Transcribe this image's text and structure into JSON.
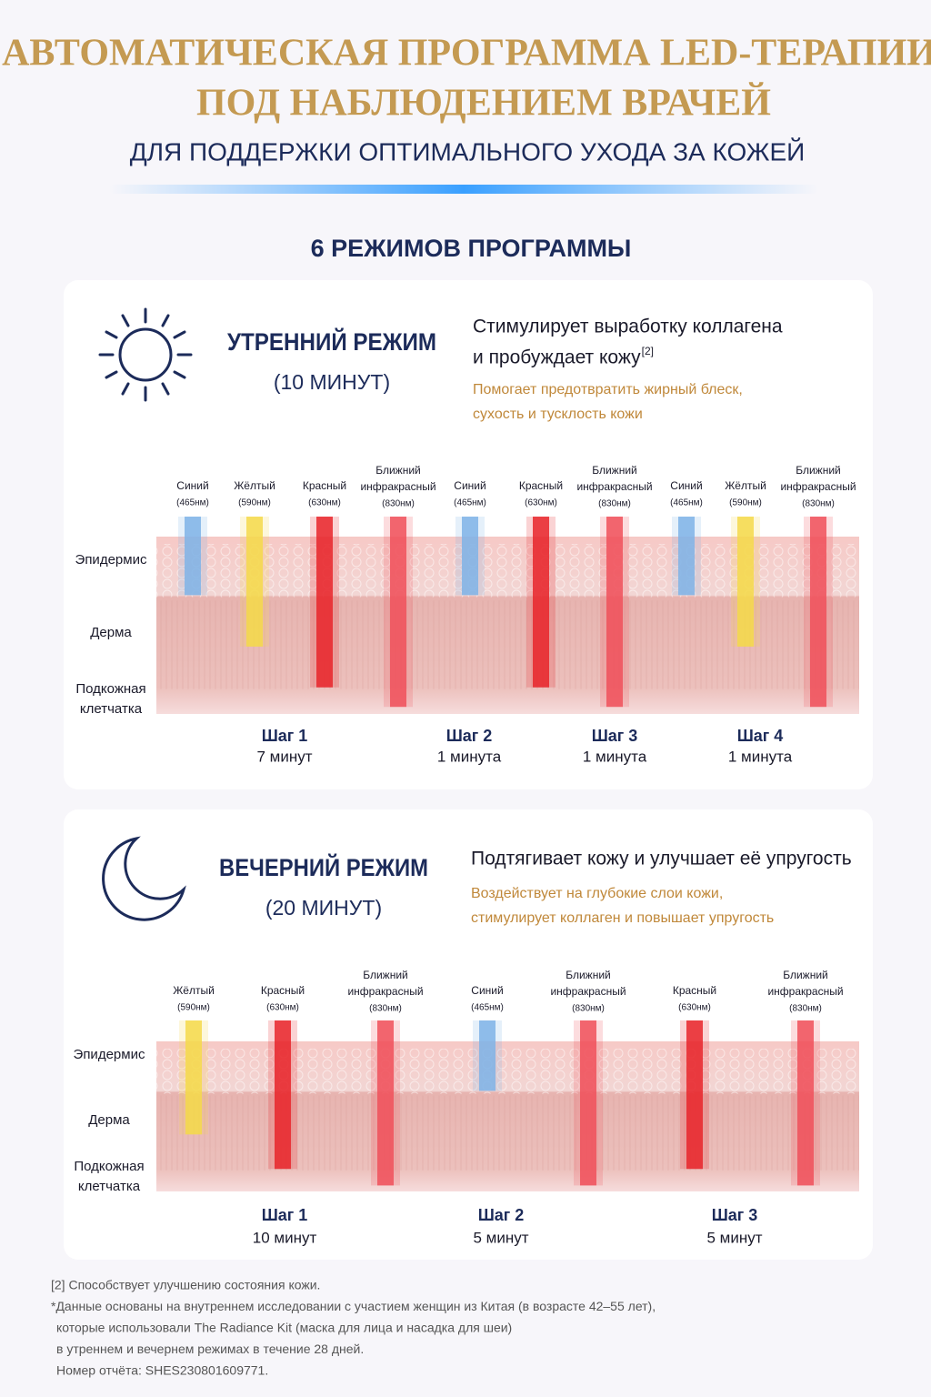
{
  "header": {
    "title_line1": "АВТОМАТИЧЕСКАЯ ПРОГРАММА LED-ТЕРАПИИ",
    "title_line2": "ПОД НАБЛЮДЕНИЕМ ВРАЧЕЙ",
    "subtitle": "ДЛЯ ПОДДЕРЖКИ ОПТИМАЛЬНОГО УХОДА ЗА КОЖЕЙ"
  },
  "section_title": "6 РЕЖИМОВ ПРОГРАММЫ",
  "modes": [
    {
      "name": "УТРЕННИЙ РЕЖИМ",
      "duration": "(10 МИНУТ)",
      "headline": [
        "Стимулирует выработку коллагена",
        "и пробуждает кожу"
      ],
      "headline_note": "[2]",
      "description": [
        "Помогает предотвратить жирный блеск,",
        "сухость и тусклость кожи"
      ],
      "layers": [
        [
          "Эпидермис"
        ],
        [
          "Дерма"
        ],
        [
          "Подкожная",
          "клетчатка"
        ]
      ],
      "lights": [
        {
          "name": [
            "Синий"
          ],
          "wavelength": "(465нм)",
          "color": "#7fb3e6"
        },
        {
          "name": [
            "Жёлтый"
          ],
          "wavelength": "(590нм)",
          "color": "#f5d94a"
        },
        {
          "name": [
            "Красный"
          ],
          "wavelength": "(630нм)",
          "color": "#e8242a"
        },
        {
          "name": [
            "Ближний",
            "инфракрасный"
          ],
          "wavelength": "(830нм)",
          "color": "#f0505a"
        },
        {
          "name": [
            "Синий"
          ],
          "wavelength": "(465нм)",
          "color": "#7fb3e6"
        },
        {
          "name": [
            "Красный"
          ],
          "wavelength": "(630нм)",
          "color": "#e8242a"
        },
        {
          "name": [
            "Ближний",
            "инфракрасный"
          ],
          "wavelength": "(830нм)",
          "color": "#f0505a"
        },
        {
          "name": [
            "Синий"
          ],
          "wavelength": "(465нм)",
          "color": "#7fb3e6"
        },
        {
          "name": [
            "Жёлтый"
          ],
          "wavelength": "(590нм)",
          "color": "#f5d94a"
        },
        {
          "name": [
            "Ближний",
            "инфракрасный"
          ],
          "wavelength": "(830нм)",
          "color": "#f0505a"
        }
      ],
      "steps": [
        {
          "label": "Шаг 1",
          "duration": "7 минут"
        },
        {
          "label": "Шаг 2",
          "duration": "1 минута"
        },
        {
          "label": "Шаг 3",
          "duration": "1 минута"
        },
        {
          "label": "Шаг 4",
          "duration": "1 минута"
        }
      ]
    },
    {
      "name": "ВЕЧЕРНИЙ РЕЖИМ",
      "duration": "(20 МИНУТ)",
      "headline": [
        "Подтягивает кожу и улучшает её упругость"
      ],
      "description": [
        "Воздействует на глубокие слои кожи,",
        "стимулирует коллаген и повышает упругость"
      ],
      "layers": [
        [
          "Эпидермис"
        ],
        [
          "Дерма"
        ],
        [
          "Подкожная",
          "клетчатка"
        ]
      ],
      "lights": [
        {
          "name": [
            "Жёлтый"
          ],
          "wavelength": "(590нм)",
          "color": "#f5d94a"
        },
        {
          "name": [
            "Красный"
          ],
          "wavelength": "(630нм)",
          "color": "#e8242a"
        },
        {
          "name": [
            "Ближний",
            "инфракрасный"
          ],
          "wavelength": "(830нм)",
          "color": "#f0505a"
        },
        {
          "name": [
            "Синий"
          ],
          "wavelength": "(465нм)",
          "color": "#7fb3e6"
        },
        {
          "name": [
            "Ближний",
            "инфракрасный"
          ],
          "wavelength": "(830нм)",
          "color": "#f0505a"
        },
        {
          "name": [
            "Красный"
          ],
          "wavelength": "(630нм)",
          "color": "#e8242a"
        },
        {
          "name": [
            "Ближний",
            "инфракрасный"
          ],
          "wavelength": "(830нм)",
          "color": "#f0505a"
        }
      ],
      "steps": [
        {
          "label": "Шаг 1",
          "duration": "10 минут"
        },
        {
          "label": "Шаг 2",
          "duration": "5 минут"
        },
        {
          "label": "Шаг 3",
          "duration": "5 минут"
        }
      ]
    }
  ],
  "footnotes": [
    "[2] Способствует улучшению состояния кожи.",
    "*Данные основаны на внутреннем исследовании с участием женщин из Китая (в возрасте 42–55 лет),",
    "которые использовали The Radiance Kit (маска для лица и насадка для шеи)",
    "в утреннем и вечернем режимах в течение 28 дней.",
    "Номер отчёта: SHES230801609771."
  ]
}
